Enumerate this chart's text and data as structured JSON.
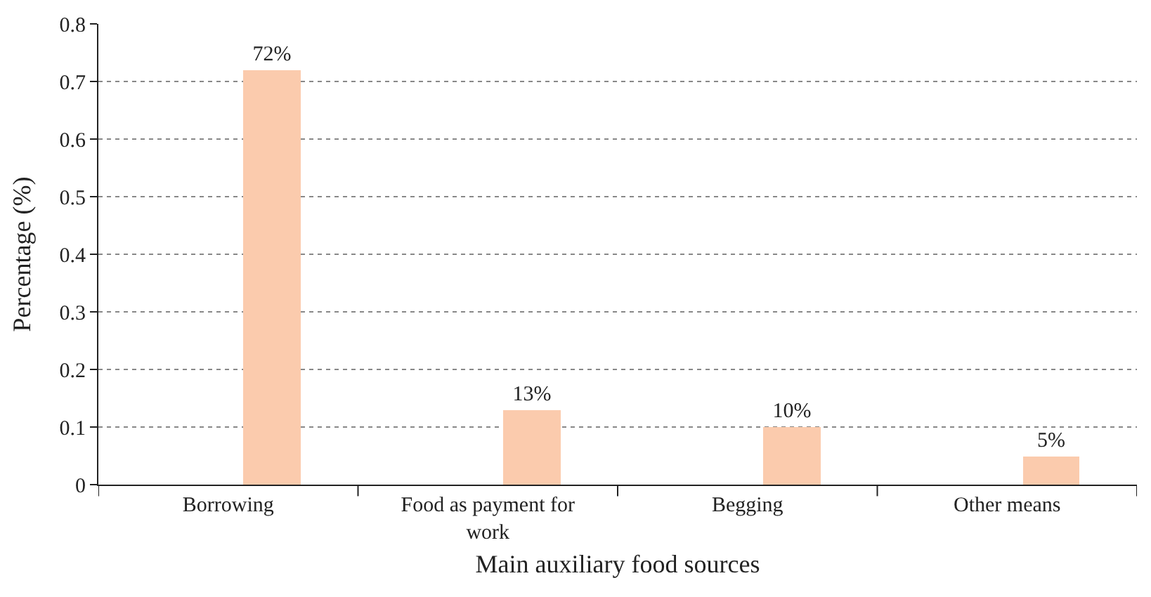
{
  "chart_data": {
    "type": "bar",
    "xlabel": "Main auxiliary food sources",
    "ylabel": "Percentage (%)",
    "categories": [
      "Borrowing",
      "Food as payment for work",
      "Begging",
      "Other means"
    ],
    "values": [
      0.72,
      0.13,
      0.1,
      0.05
    ],
    "value_labels": [
      "72%",
      "13%",
      "10%",
      "5%"
    ],
    "color": "#fbcbad",
    "ylim": [
      0,
      0.8
    ],
    "yticks": [
      0,
      0.1,
      0.2,
      0.3,
      0.4,
      0.5,
      0.6,
      0.7,
      0.8
    ],
    "grid": "y",
    "line_style": "dotted"
  }
}
